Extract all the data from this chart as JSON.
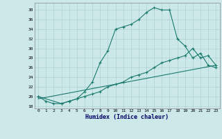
{
  "xlabel": "Humidex (Indice chaleur)",
  "xlim": [
    -0.5,
    23.5
  ],
  "ylim": [
    17.5,
    39.5
  ],
  "yticks": [
    18,
    20,
    22,
    24,
    26,
    28,
    30,
    32,
    34,
    36,
    38
  ],
  "xticks": [
    0,
    1,
    2,
    3,
    4,
    5,
    6,
    7,
    8,
    9,
    10,
    11,
    12,
    13,
    14,
    15,
    16,
    17,
    18,
    19,
    20,
    21,
    22,
    23
  ],
  "bg_color": "#cce8e8",
  "line_color": "#1a7a6e",
  "grid_color": "#b0d0d0",
  "line1_x": [
    0,
    1,
    2,
    3,
    4,
    5,
    6,
    7,
    8,
    9,
    10,
    11,
    12,
    13,
    14,
    15,
    16,
    17,
    18,
    19,
    20,
    21,
    22,
    23
  ],
  "line1_y": [
    20,
    19,
    18.5,
    18.5,
    19,
    19.5,
    21,
    23,
    27,
    29.5,
    34,
    34.5,
    35,
    36,
    37.5,
    38.5,
    38,
    38,
    32,
    30.5,
    28,
    29,
    26.5,
    26
  ],
  "line2_x": [
    0,
    3,
    4,
    5,
    6,
    7,
    8,
    9,
    10,
    11,
    12,
    13,
    14,
    15,
    16,
    17,
    18,
    19,
    20,
    21,
    22,
    23
  ],
  "line2_y": [
    20,
    18.5,
    19,
    19.5,
    20,
    20.5,
    21,
    22,
    22.5,
    23,
    24,
    24.5,
    25,
    26,
    27,
    27.5,
    28,
    28.5,
    30,
    28,
    28.5,
    26.5
  ],
  "line3_x": [
    0,
    23
  ],
  "line3_y": [
    19.5,
    26.5
  ]
}
